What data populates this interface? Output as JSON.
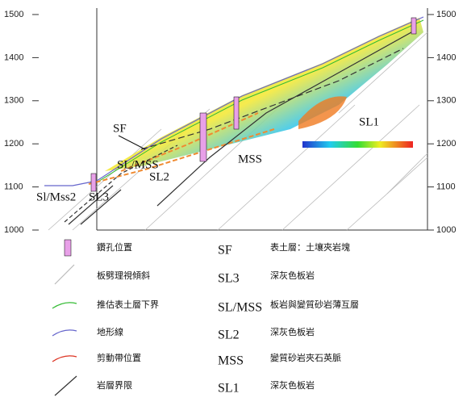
{
  "axis": {
    "ylim": [
      1000,
      1500
    ],
    "yticks": [
      1000,
      1100,
      1200,
      1300,
      1400,
      1500
    ]
  },
  "section_labels": [
    "SF",
    "SL/MSS",
    "SL2",
    "MSS",
    "SL1",
    "Sl/Mss2",
    "SL3"
  ],
  "legend": {
    "symbols": [
      "鑽孔位置",
      "板劈理視傾斜",
      "推估表土層下界",
      "地形線",
      "剪動帶位置",
      "岩層界限"
    ],
    "units": [
      {
        "code": "SF",
        "description": "表土層：土壤夾岩塊"
      },
      {
        "code": "SL3",
        "description": "深灰色板岩"
      },
      {
        "code": "SL/MSS",
        "description": "板岩與變質砂岩薄互層"
      },
      {
        "code": "SL2",
        "description": "深灰色板岩"
      },
      {
        "code": "MSS",
        "description": "變質砂岩夾石英脈"
      },
      {
        "code": "SL1",
        "description": "深灰色板岩"
      }
    ]
  }
}
